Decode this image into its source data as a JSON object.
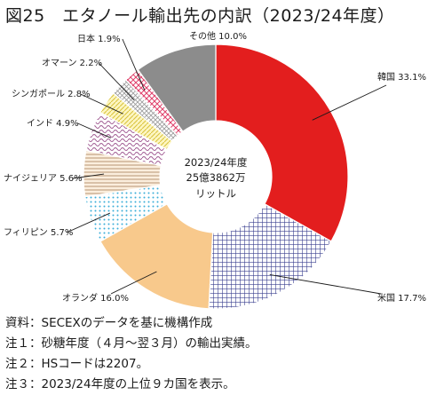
{
  "title": "図25　エタノール輸出先の内訳（2023/24年度）",
  "chart_data": {
    "type": "pie",
    "variant": "donut",
    "title": "図25　エタノール輸出先の内訳（2023/24年度）",
    "center_label": [
      "2023/24年度",
      "25億3862万",
      "リットル"
    ],
    "unit": "%",
    "slices": [
      {
        "name": "韓国",
        "value": 33.1,
        "label": "韓国 33.1%",
        "color": "#e31e1e",
        "pattern": "solid"
      },
      {
        "name": "米国",
        "value": 17.7,
        "label": "米国 17.7%",
        "color": "#3a3f8f",
        "pattern": "grid"
      },
      {
        "name": "オランダ",
        "value": 16.0,
        "label": "オランダ 16.0%",
        "color": "#f8c98c",
        "pattern": "solid"
      },
      {
        "name": "フィリピン",
        "value": 5.7,
        "label": "フィリピン 5.7%",
        "color": "#3aaed8",
        "pattern": "dots"
      },
      {
        "name": "ナイジェリア",
        "value": 5.6,
        "label": "ナイジェリア 5.6%",
        "color": "#c9a07a",
        "pattern": "hlines"
      },
      {
        "name": "インド",
        "value": 4.9,
        "label": "インド 4.9%",
        "color": "#b46fa6",
        "pattern": "waves"
      },
      {
        "name": "シンガポール",
        "value": 2.8,
        "label": "シンガポール 2.8%",
        "color": "#f2e36a",
        "pattern": "diag"
      },
      {
        "name": "オマーン",
        "value": 2.2,
        "label": "オマーン 2.2%",
        "color": "#9a9a9a",
        "pattern": "crossdiag"
      },
      {
        "name": "日本",
        "value": 1.9,
        "label": "日本 1.9%",
        "color": "#e0406a",
        "pattern": "diamonds"
      },
      {
        "name": "その他",
        "value": 10.0,
        "label": "その他 10.0%",
        "color": "#8c8c8c",
        "pattern": "solid"
      }
    ]
  },
  "notes": [
    "資料：SECEXのデータを基に機構作成",
    "注１：砂糖年度（４月～翌３月）の輸出実績。",
    "注２：HSコードは2207。",
    "注３：2023/24年度の上位９カ国を表示。"
  ]
}
